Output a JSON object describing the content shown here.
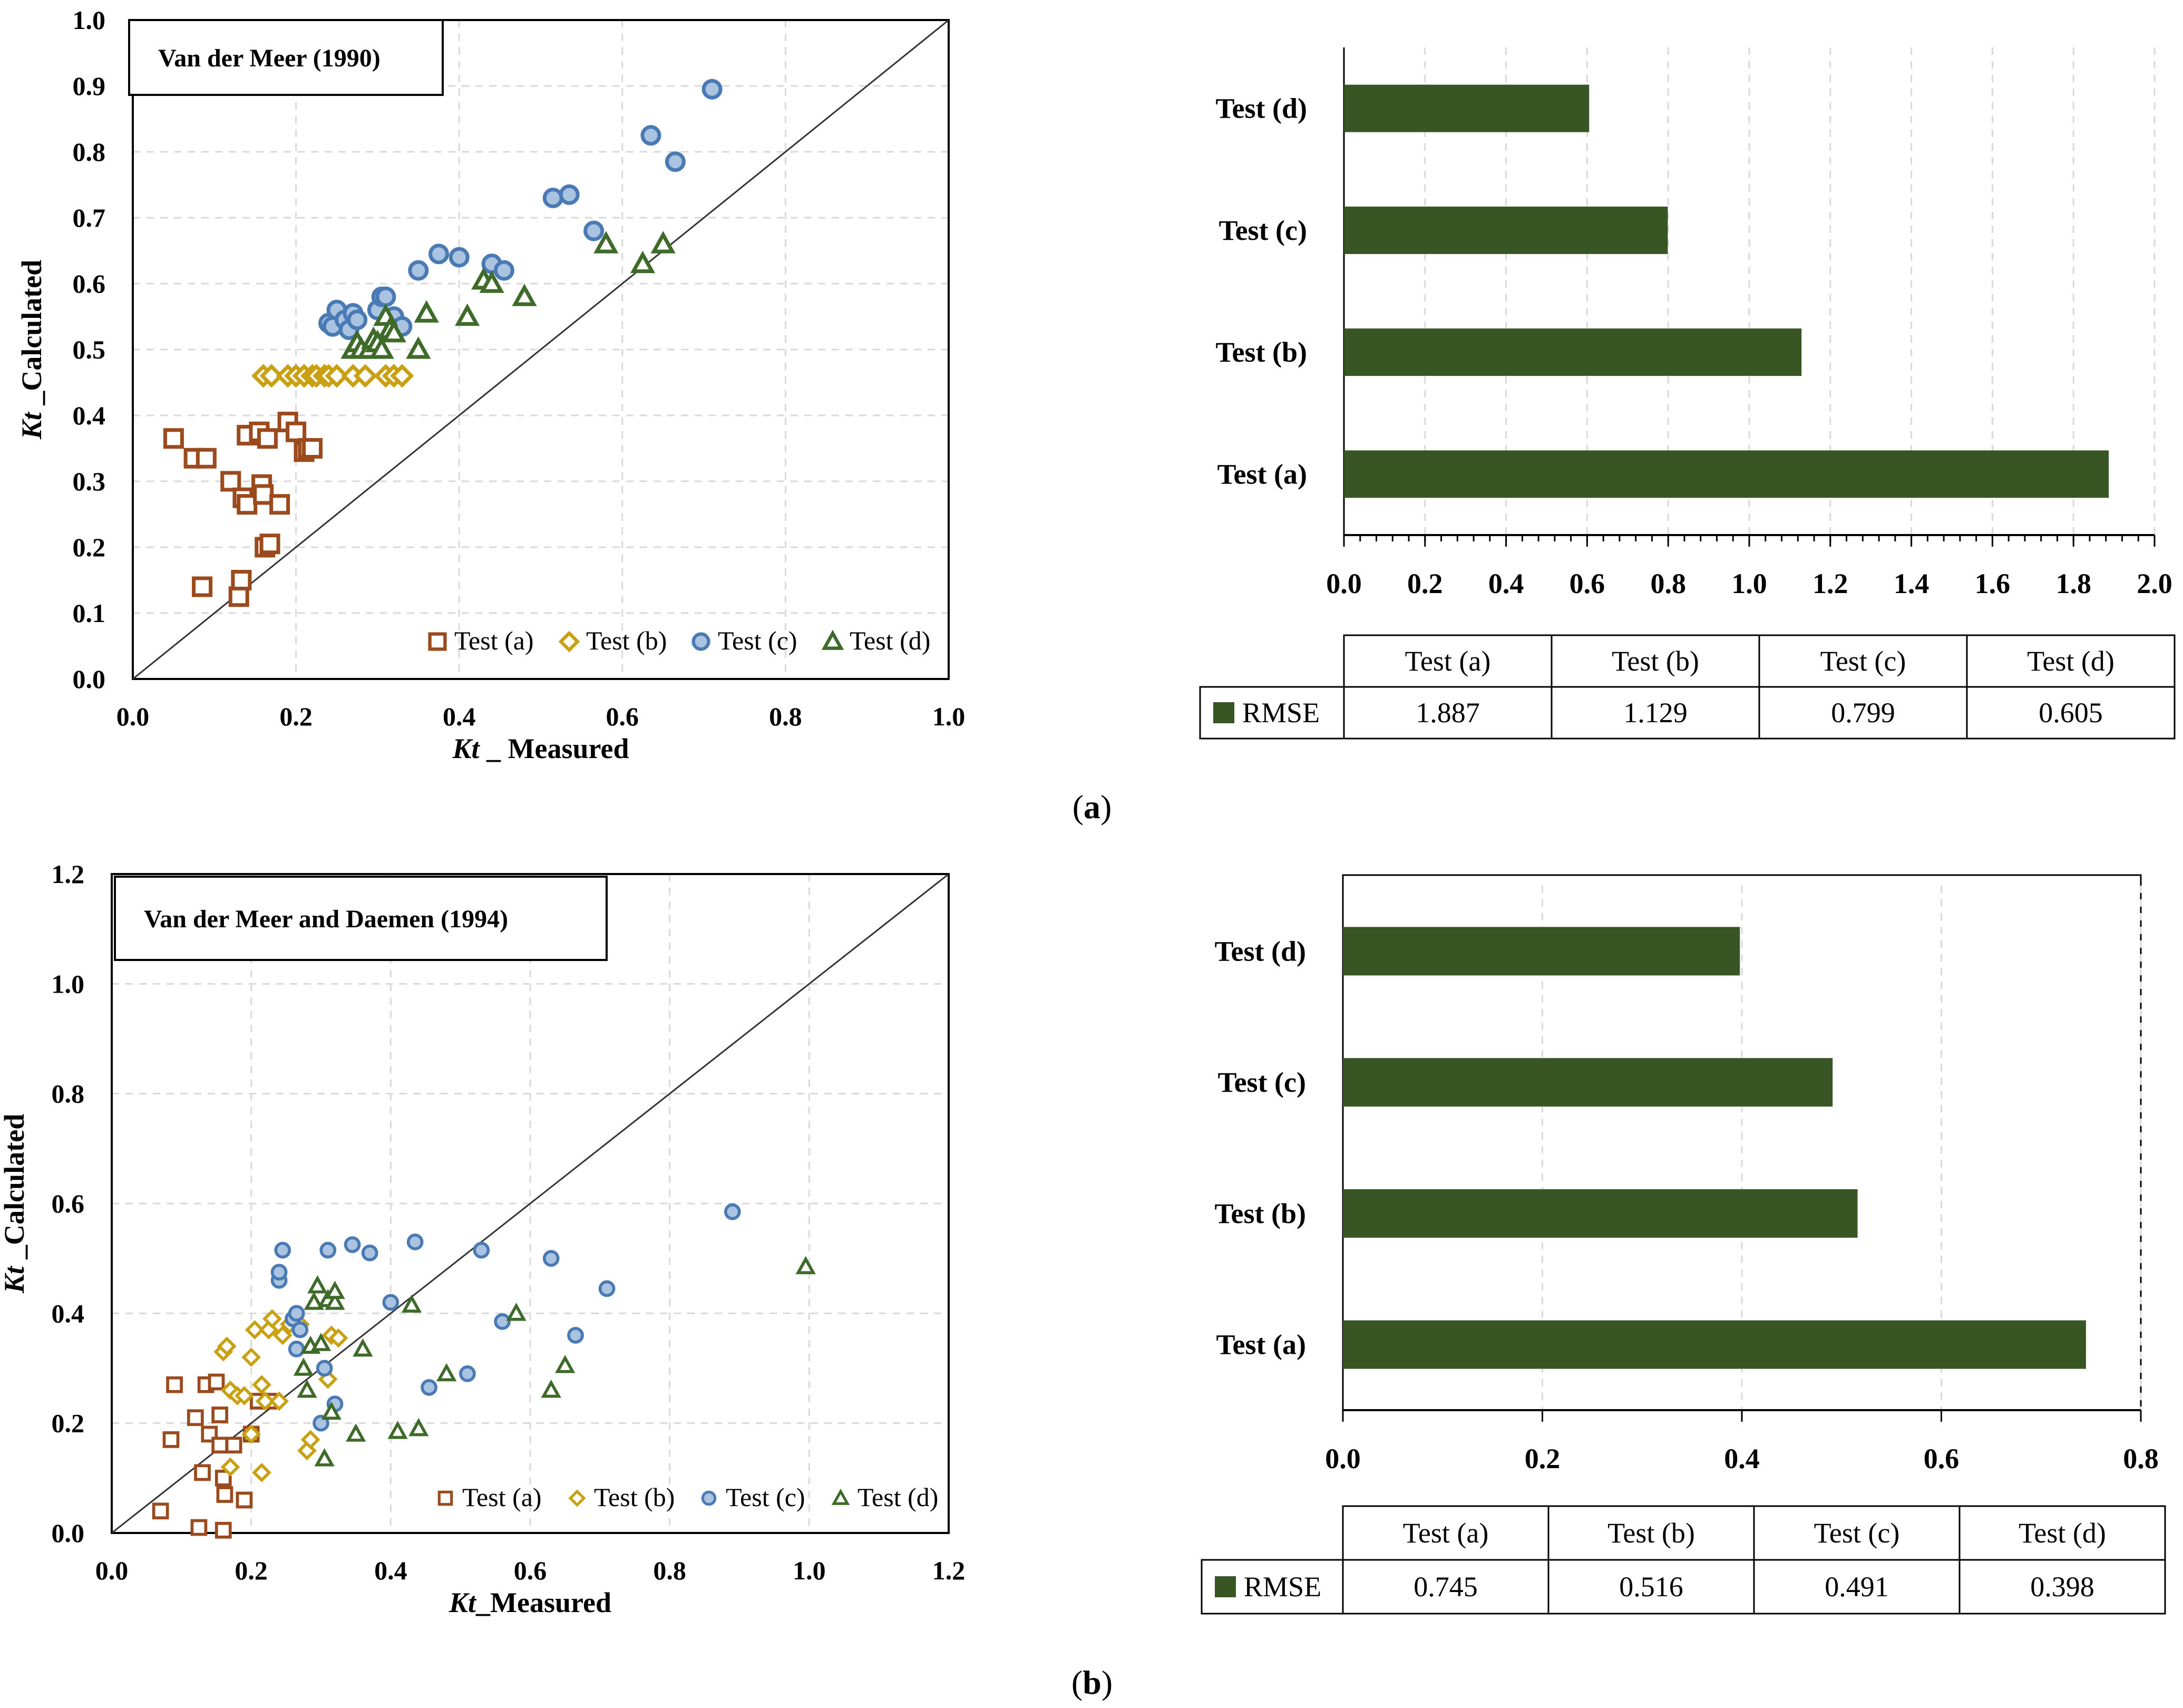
{
  "panel_labels": {
    "a": "a",
    "b": "b"
  },
  "colors": {
    "test_a": "#9a4a1c",
    "test_b": "#c9a012",
    "test_c_fill": "#a9c3e0",
    "test_c_stroke": "#4a7ab4",
    "test_d": "#3e6b2a",
    "bar": "#375623",
    "grid": "#d9d9d9"
  },
  "chart_data": [
    {
      "id": "scatter-a",
      "type": "scatter",
      "title": "Van der Meer (1990)",
      "xlabel_italic": "Kt",
      "xlabel_rest": " _ Measured",
      "ylabel_italic": "Kt",
      "ylabel_rest": " _Calculated",
      "xlim": [
        0,
        1.0
      ],
      "ylim": [
        0,
        1.0
      ],
      "xticks": [
        "0.0",
        "0.2",
        "0.4",
        "0.6",
        "0.8",
        "1.0"
      ],
      "yticks": [
        "0.0",
        "0.1",
        "0.2",
        "0.3",
        "0.4",
        "0.5",
        "0.6",
        "0.7",
        "0.8",
        "0.9",
        "1.0"
      ],
      "legend_position": "bottom-right",
      "series": [
        {
          "name": "Test (a)",
          "marker": "square",
          "points": [
            [
              0.05,
              0.365
            ],
            [
              0.075,
              0.335
            ],
            [
              0.09,
              0.335
            ],
            [
              0.085,
              0.14
            ],
            [
              0.12,
              0.3
            ],
            [
              0.13,
              0.125
            ],
            [
              0.133,
              0.15
            ],
            [
              0.135,
              0.275
            ],
            [
              0.14,
              0.265
            ],
            [
              0.14,
              0.37
            ],
            [
              0.155,
              0.375
            ],
            [
              0.158,
              0.295
            ],
            [
              0.16,
              0.28
            ],
            [
              0.162,
              0.2
            ],
            [
              0.165,
              0.365
            ],
            [
              0.168,
              0.205
            ],
            [
              0.18,
              0.265
            ],
            [
              0.19,
              0.39
            ],
            [
              0.2,
              0.375
            ],
            [
              0.21,
              0.345
            ],
            [
              0.215,
              0.35
            ],
            [
              0.22,
              0.35
            ]
          ]
        },
        {
          "name": "Test (b)",
          "marker": "diamond",
          "points": [
            [
              0.16,
              0.46
            ],
            [
              0.17,
              0.46
            ],
            [
              0.19,
              0.46
            ],
            [
              0.2,
              0.46
            ],
            [
              0.21,
              0.46
            ],
            [
              0.22,
              0.46
            ],
            [
              0.225,
              0.46
            ],
            [
              0.235,
              0.46
            ],
            [
              0.24,
              0.46
            ],
            [
              0.25,
              0.46
            ],
            [
              0.27,
              0.46
            ],
            [
              0.285,
              0.46
            ],
            [
              0.31,
              0.46
            ],
            [
              0.32,
              0.46
            ],
            [
              0.33,
              0.46
            ]
          ]
        },
        {
          "name": "Test (c)",
          "marker": "circle",
          "points": [
            [
              0.24,
              0.54
            ],
            [
              0.245,
              0.535
            ],
            [
              0.25,
              0.56
            ],
            [
              0.26,
              0.545
            ],
            [
              0.265,
              0.53
            ],
            [
              0.27,
              0.555
            ],
            [
              0.275,
              0.545
            ],
            [
              0.3,
              0.56
            ],
            [
              0.305,
              0.58
            ],
            [
              0.31,
              0.58
            ],
            [
              0.32,
              0.55
            ],
            [
              0.33,
              0.535
            ],
            [
              0.35,
              0.62
            ],
            [
              0.375,
              0.645
            ],
            [
              0.4,
              0.64
            ],
            [
              0.44,
              0.63
            ],
            [
              0.455,
              0.62
            ],
            [
              0.515,
              0.73
            ],
            [
              0.535,
              0.735
            ],
            [
              0.565,
              0.68
            ],
            [
              0.635,
              0.825
            ],
            [
              0.665,
              0.785
            ],
            [
              0.71,
              0.895
            ]
          ]
        },
        {
          "name": "Test (d)",
          "marker": "triangle",
          "points": [
            [
              0.27,
              0.5
            ],
            [
              0.275,
              0.51
            ],
            [
              0.28,
              0.5
            ],
            [
              0.29,
              0.5
            ],
            [
              0.295,
              0.515
            ],
            [
              0.3,
              0.51
            ],
            [
              0.305,
              0.5
            ],
            [
              0.31,
              0.55
            ],
            [
              0.315,
              0.53
            ],
            [
              0.32,
              0.525
            ],
            [
              0.35,
              0.5
            ],
            [
              0.36,
              0.555
            ],
            [
              0.41,
              0.55
            ],
            [
              0.43,
              0.605
            ],
            [
              0.44,
              0.6
            ],
            [
              0.48,
              0.58
            ],
            [
              0.58,
              0.66
            ],
            [
              0.625,
              0.63
            ],
            [
              0.65,
              0.66
            ]
          ]
        }
      ]
    },
    {
      "id": "bar-a",
      "type": "bar",
      "orientation": "horizontal",
      "categories": [
        "Test (d)",
        "Test (c)",
        "Test (b)",
        "Test (a)"
      ],
      "values": [
        0.605,
        0.799,
        1.129,
        1.887
      ],
      "xlim": [
        0,
        2.0
      ],
      "xticks": [
        "0.0",
        "0.2",
        "0.4",
        "0.6",
        "0.8",
        "1.0",
        "1.2",
        "1.4",
        "1.6",
        "1.8",
        "2.0"
      ],
      "table": {
        "headers": [
          "Test (a)",
          "Test (b)",
          "Test (c)",
          "Test (d)"
        ],
        "row_label": "RMSE",
        "values": [
          "1.887",
          "1.129",
          "0.799",
          "0.605"
        ]
      }
    },
    {
      "id": "scatter-b",
      "type": "scatter",
      "title": "Van der Meer and Daemen (1994)",
      "xlabel_italic": "Kt",
      "xlabel_rest": "_Measured",
      "ylabel_italic": "Kt",
      "ylabel_rest": " _Calculated",
      "xlim": [
        0,
        1.2
      ],
      "ylim": [
        0,
        1.2
      ],
      "xticks": [
        "0.0",
        "0.2",
        "0.4",
        "0.6",
        "0.8",
        "1.0",
        "1.2"
      ],
      "yticks": [
        "0.0",
        "0.2",
        "0.4",
        "0.6",
        "0.8",
        "1.0",
        "1.2"
      ],
      "legend_position": "bottom-right",
      "series": [
        {
          "name": "Test (a)",
          "marker": "square",
          "points": [
            [
              0.07,
              0.04
            ],
            [
              0.085,
              0.17
            ],
            [
              0.09,
              0.27
            ],
            [
              0.12,
              0.21
            ],
            [
              0.125,
              0.01
            ],
            [
              0.13,
              0.11
            ],
            [
              0.135,
              0.27
            ],
            [
              0.14,
              0.18
            ],
            [
              0.15,
              0.275
            ],
            [
              0.155,
              0.215
            ],
            [
              0.155,
              0.16
            ],
            [
              0.16,
              0.1
            ],
            [
              0.16,
              0.005
            ],
            [
              0.162,
              0.07
            ],
            [
              0.175,
              0.16
            ],
            [
              0.19,
              0.06
            ],
            [
              0.2,
              0.18
            ],
            [
              0.21,
              0.24
            ],
            [
              0.225,
              0.24
            ]
          ]
        },
        {
          "name": "Test (b)",
          "marker": "diamond",
          "points": [
            [
              0.16,
              0.33
            ],
            [
              0.165,
              0.34
            ],
            [
              0.17,
              0.12
            ],
            [
              0.17,
              0.26
            ],
            [
              0.18,
              0.25
            ],
            [
              0.19,
              0.25
            ],
            [
              0.2,
              0.32
            ],
            [
              0.2,
              0.18
            ],
            [
              0.205,
              0.37
            ],
            [
              0.215,
              0.11
            ],
            [
              0.215,
              0.27
            ],
            [
              0.22,
              0.24
            ],
            [
              0.225,
              0.37
            ],
            [
              0.23,
              0.39
            ],
            [
              0.24,
              0.24
            ],
            [
              0.245,
              0.36
            ],
            [
              0.255,
              0.38
            ],
            [
              0.27,
              0.38
            ],
            [
              0.28,
              0.15
            ],
            [
              0.285,
              0.17
            ],
            [
              0.31,
              0.28
            ],
            [
              0.315,
              0.36
            ],
            [
              0.325,
              0.355
            ]
          ]
        },
        {
          "name": "Test (c)",
          "marker": "circle",
          "points": [
            [
              0.24,
              0.46
            ],
            [
              0.24,
              0.475
            ],
            [
              0.245,
              0.515
            ],
            [
              0.26,
              0.39
            ],
            [
              0.265,
              0.4
            ],
            [
              0.265,
              0.335
            ],
            [
              0.27,
              0.37
            ],
            [
              0.3,
              0.2
            ],
            [
              0.305,
              0.3
            ],
            [
              0.31,
              0.515
            ],
            [
              0.32,
              0.235
            ],
            [
              0.345,
              0.525
            ],
            [
              0.37,
              0.51
            ],
            [
              0.4,
              0.42
            ],
            [
              0.435,
              0.53
            ],
            [
              0.455,
              0.265
            ],
            [
              0.51,
              0.29
            ],
            [
              0.53,
              0.515
            ],
            [
              0.56,
              0.385
            ],
            [
              0.63,
              0.5
            ],
            [
              0.665,
              0.36
            ],
            [
              0.71,
              0.445
            ],
            [
              0.89,
              0.585
            ]
          ]
        },
        {
          "name": "Test (d)",
          "marker": "triangle",
          "points": [
            [
              0.275,
              0.3
            ],
            [
              0.28,
              0.26
            ],
            [
              0.285,
              0.34
            ],
            [
              0.29,
              0.42
            ],
            [
              0.295,
              0.45
            ],
            [
              0.3,
              0.345
            ],
            [
              0.305,
              0.135
            ],
            [
              0.31,
              0.425
            ],
            [
              0.315,
              0.22
            ],
            [
              0.32,
              0.42
            ],
            [
              0.32,
              0.44
            ],
            [
              0.35,
              0.18
            ],
            [
              0.36,
              0.335
            ],
            [
              0.41,
              0.185
            ],
            [
              0.43,
              0.415
            ],
            [
              0.44,
              0.19
            ],
            [
              0.48,
              0.29
            ],
            [
              0.58,
              0.4
            ],
            [
              0.63,
              0.26
            ],
            [
              0.65,
              0.305
            ],
            [
              0.995,
              0.485
            ]
          ]
        }
      ]
    },
    {
      "id": "bar-b",
      "type": "bar",
      "orientation": "horizontal",
      "categories": [
        "Test (d)",
        "Test (c)",
        "Test (b)",
        "Test (a)"
      ],
      "values": [
        0.398,
        0.491,
        0.516,
        0.745
      ],
      "xlim": [
        0,
        0.8
      ],
      "xticks": [
        "0.0",
        "0.2",
        "0.4",
        "0.6",
        "0.8"
      ],
      "table": {
        "headers": [
          "Test (a)",
          "Test (b)",
          "Test (c)",
          "Test (d)"
        ],
        "row_label": "RMSE",
        "values": [
          "0.745",
          "0.516",
          "0.491",
          "0.398"
        ]
      }
    }
  ]
}
